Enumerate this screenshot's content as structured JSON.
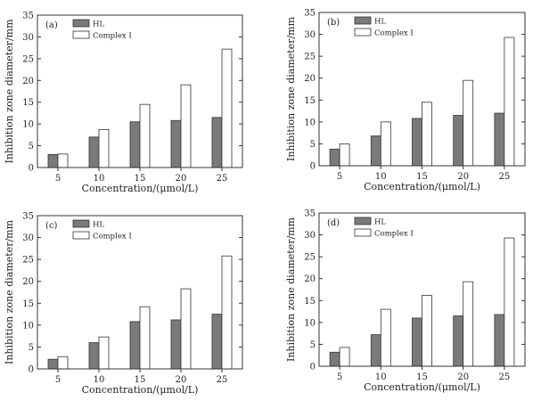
{
  "colors": {
    "series_hl": "#7a7a7a",
    "series_complex": "#ffffff",
    "stroke": "#333333"
  },
  "chart_data": [
    {
      "type": "bar",
      "panel_label": "(a)",
      "categories": [
        "5",
        "10",
        "15",
        "20",
        "25"
      ],
      "series": [
        {
          "name": "HL",
          "values": [
            3.0,
            7.0,
            10.5,
            10.8,
            11.5
          ]
        },
        {
          "name": "Complex I",
          "values": [
            3.1,
            8.7,
            14.5,
            19.0,
            27.2
          ]
        }
      ],
      "xlabel": "Concentration/(μmol/L)",
      "ylabel": "Inhibition zone diameter/mm",
      "ylim": [
        0,
        35
      ],
      "yticks": [
        "0",
        "5",
        "10",
        "15",
        "20",
        "25",
        "30",
        "35"
      ],
      "legend": "top-left",
      "grid": false
    },
    {
      "type": "bar",
      "panel_label": "(b)",
      "categories": [
        "5",
        "10",
        "15",
        "20",
        "25"
      ],
      "series": [
        {
          "name": "HL",
          "values": [
            3.8,
            6.8,
            10.8,
            11.5,
            12.0
          ]
        },
        {
          "name": "Complex I",
          "values": [
            5.0,
            10.0,
            14.5,
            19.5,
            29.3
          ]
        }
      ],
      "xlabel": "Concentration/(μmol/L)",
      "ylabel": "Inhibition zone diameter/mm",
      "ylim": [
        0,
        35
      ],
      "yticks": [
        "0",
        "5",
        "10",
        "15",
        "20",
        "25",
        "30",
        "35"
      ],
      "legend": "top-left",
      "grid": false
    },
    {
      "type": "bar",
      "panel_label": "(c)",
      "categories": [
        "5",
        "10",
        "15",
        "20",
        "25"
      ],
      "series": [
        {
          "name": "HL",
          "values": [
            2.2,
            6.0,
            10.8,
            11.2,
            12.5
          ]
        },
        {
          "name": "Complex I",
          "values": [
            2.8,
            7.3,
            14.2,
            18.3,
            25.8
          ]
        }
      ],
      "xlabel": "Concentration/(μmol/L)",
      "ylabel": "Inhibition zone diameter/mm",
      "ylim": [
        0,
        35
      ],
      "yticks": [
        "0",
        "5",
        "10",
        "15",
        "20",
        "25",
        "30",
        "35"
      ],
      "legend": "top-left",
      "grid": false
    },
    {
      "type": "bar",
      "panel_label": "(d)",
      "categories": [
        "5",
        "10",
        "15",
        "20",
        "25"
      ],
      "series": [
        {
          "name": "HL",
          "values": [
            3.2,
            7.2,
            11.0,
            11.5,
            11.8
          ]
        },
        {
          "name": "Complex I",
          "values": [
            4.3,
            13.0,
            16.2,
            19.3,
            29.3
          ]
        }
      ],
      "xlabel": "Concentration/(μmol/L)",
      "ylabel": "Inhibition zone diameter/mm",
      "ylim": [
        0,
        35
      ],
      "yticks": [
        "0",
        "5",
        "10",
        "15",
        "20",
        "25",
        "30",
        "35"
      ],
      "legend": "top-left",
      "grid": false
    }
  ]
}
